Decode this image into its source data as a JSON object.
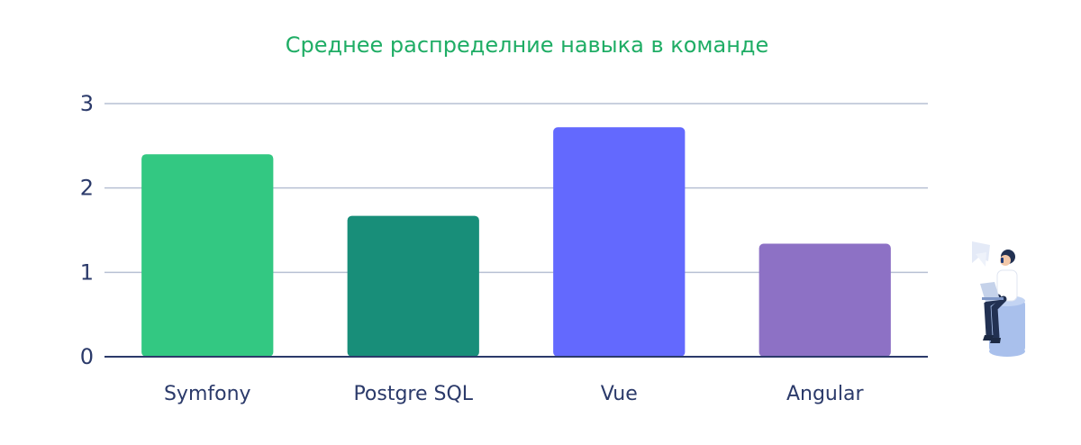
{
  "colors": {
    "title": "#1fad65",
    "axis_text": "#2b3a6a",
    "grid": "#b7c0d3",
    "baseline": "#2b3a6a",
    "bars": [
      "#33c882",
      "#188e79",
      "#6369fe",
      "#8d71c5"
    ]
  },
  "illustration": {
    "icon": "person-with-laptop-icon"
  },
  "chart_data": {
    "type": "bar",
    "title": "Среднее распределние навыка в команде",
    "xlabel": "",
    "ylabel": "",
    "categories": [
      "Symfony",
      "Postgre SQL",
      "Vue",
      "Angular"
    ],
    "values": [
      2.4,
      1.67,
      2.72,
      1.34
    ],
    "ylim": [
      0,
      3
    ],
    "yticks": [
      "0",
      "1",
      "2",
      "3"
    ],
    "grid": true,
    "legend": "none"
  }
}
